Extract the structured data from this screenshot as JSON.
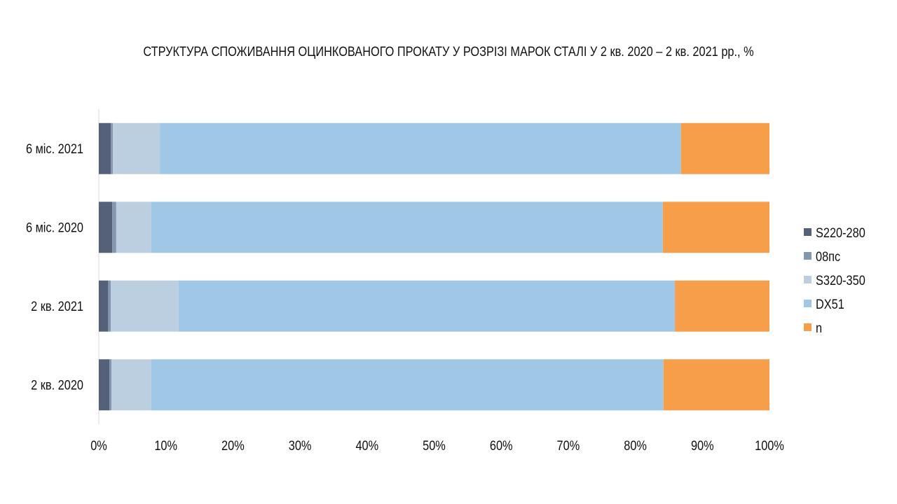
{
  "chart_data": {
    "type": "bar",
    "orientation": "horizontal",
    "stacked": "percent",
    "title": "СТРУКТУРА СПОЖИВАННЯ ОЦИНКОВАНОГО ПРОКАТУ У РОЗРІЗІ МАРОК СТАЛІ У 2 кв. 2020 – 2 кв. 2021 рр., %",
    "categories": [
      "6 міс. 2021",
      "6 міс. 2020",
      "2 кв. 2021",
      "2 кв. 2020"
    ],
    "series": [
      {
        "name": "S220-280",
        "color": "#556179",
        "values": [
          1.8,
          2.0,
          1.4,
          1.6
        ]
      },
      {
        "name": "08пс",
        "color": "#8497b0",
        "values": [
          0.3,
          0.6,
          0.4,
          0.3
        ]
      },
      {
        "name": "S320-350",
        "color": "#bccfe0",
        "values": [
          7.0,
          5.2,
          10.1,
          5.9
        ]
      },
      {
        "name": "DX51",
        "color": "#a0c8e6",
        "values": [
          77.7,
          76.3,
          74.0,
          76.4
        ]
      },
      {
        "name": "n",
        "color": "#f79e4b",
        "values": [
          13.2,
          15.9,
          14.1,
          15.8
        ]
      }
    ],
    "xlim": [
      0,
      100
    ],
    "x_ticks": [
      "0%",
      "10%",
      "20%",
      "30%",
      "40%",
      "50%",
      "60%",
      "70%",
      "80%",
      "90%",
      "100%"
    ],
    "grid": false,
    "legend_position": "right"
  }
}
